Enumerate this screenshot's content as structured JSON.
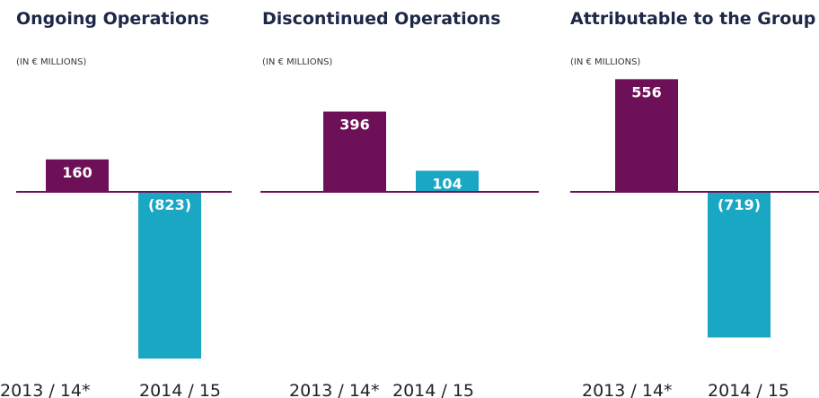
{
  "chart_data": [
    {
      "type": "bar",
      "title": "Ongoing Operations",
      "subtitle": "(IN € MILLIONS)",
      "categories": [
        "2013 / 14*",
        "2014 / 15"
      ],
      "values": [
        160,
        -823
      ],
      "value_labels": [
        "160",
        "(823)"
      ],
      "colors": [
        "#6e1057",
        "#1aa7c4"
      ]
    },
    {
      "type": "bar",
      "title": "Discontinued Operations",
      "subtitle": "(IN € MILLIONS)",
      "categories": [
        "2013 / 14*",
        "2014 / 15"
      ],
      "values": [
        396,
        104
      ],
      "value_labels": [
        "396",
        "104"
      ],
      "colors": [
        "#6e1057",
        "#1aa7c4"
      ]
    },
    {
      "type": "bar",
      "title": "Attributable to the Group",
      "subtitle": "(IN € MILLIONS)",
      "categories": [
        "2013 / 14*",
        "2014 / 15"
      ],
      "values": [
        556,
        -719
      ],
      "value_labels": [
        "556",
        "(719)"
      ],
      "colors": [
        "#6e1057",
        "#1aa7c4"
      ]
    }
  ]
}
